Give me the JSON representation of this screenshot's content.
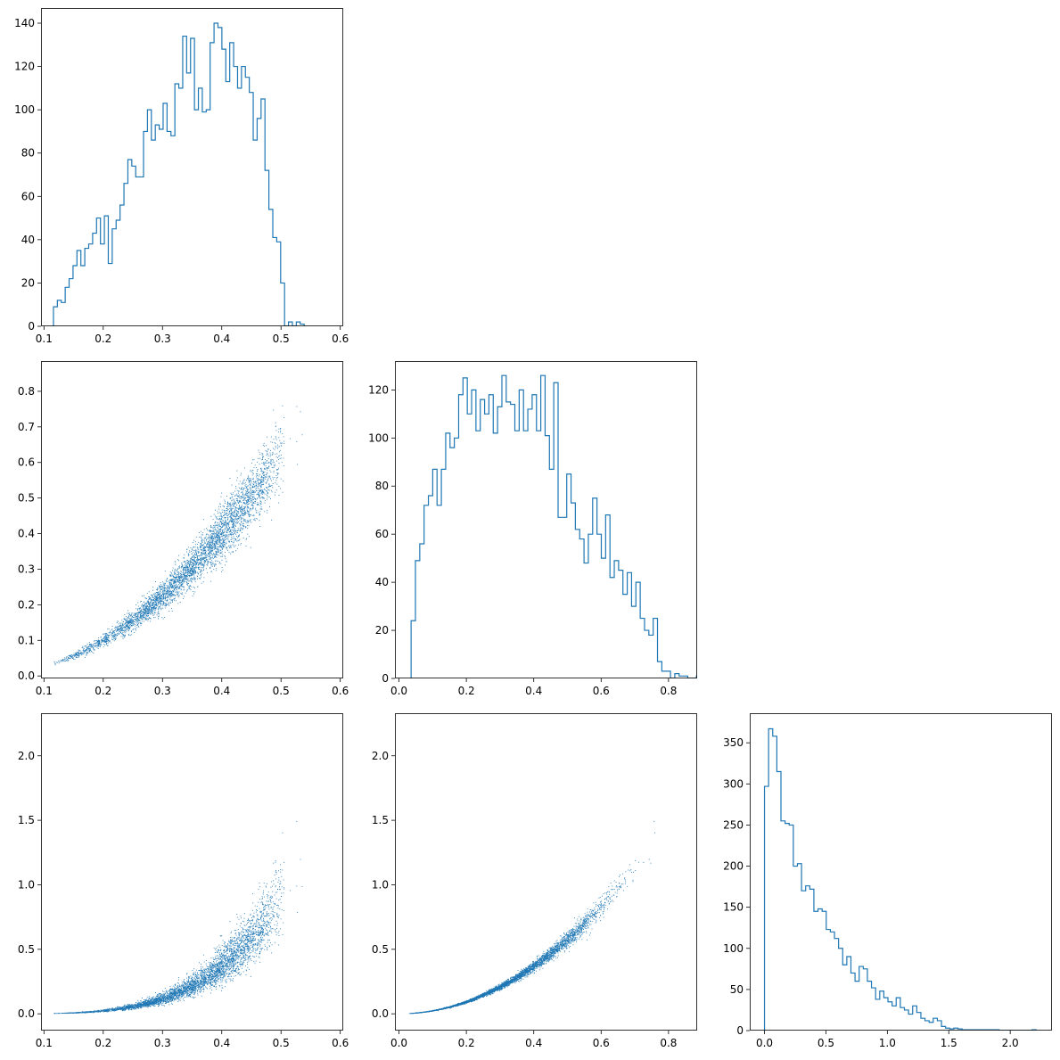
{
  "figure": {
    "type": "corner-plot",
    "series_color": "#1f77b4"
  },
  "chart_data": [
    {
      "id": "hist-param-1",
      "type": "histogram",
      "row": 0,
      "col": 0,
      "xlim": [
        0.095,
        0.605
      ],
      "ylim": [
        0,
        147
      ],
      "xticks": [
        0.1,
        0.2,
        0.3,
        0.4,
        0.5,
        0.6
      ],
      "xtick_labels": [
        "0.1",
        "0.2",
        "0.3",
        "0.4",
        "0.5",
        "0.6"
      ],
      "yticks": [
        0,
        20,
        40,
        60,
        80,
        100,
        120,
        140
      ],
      "ytick_labels": [
        "0",
        "20",
        "40",
        "60",
        "80",
        "100",
        "120",
        "140"
      ],
      "bin_start": 0.116,
      "bin_width": 0.00661,
      "counts": [
        9,
        12,
        11,
        18,
        22,
        28,
        35,
        28,
        36,
        38,
        43,
        50,
        38,
        51,
        29,
        45,
        49,
        56,
        66,
        77,
        74,
        69,
        69,
        90,
        100,
        86,
        93,
        91,
        103,
        90,
        88,
        112,
        110,
        134,
        117,
        133,
        100,
        110,
        99,
        100,
        131,
        140,
        138,
        128,
        113,
        131,
        120,
        110,
        120,
        115,
        108,
        86,
        96,
        105,
        72,
        54,
        41,
        39,
        20,
        0,
        2,
        0,
        2,
        1
      ]
    },
    {
      "id": "scatter-param-1-vs-2",
      "type": "scatter",
      "row": 1,
      "col": 0,
      "xlim": [
        0.095,
        0.605
      ],
      "ylim": [
        -0.007,
        0.885
      ],
      "xticks": [
        0.1,
        0.2,
        0.3,
        0.4,
        0.5,
        0.6
      ],
      "xtick_labels": [
        "0.1",
        "0.2",
        "0.3",
        "0.4",
        "0.5",
        "0.6"
      ],
      "yticks": [
        0,
        0.1,
        0.2,
        0.3,
        0.4,
        0.5,
        0.6,
        0.7,
        0.8
      ],
      "ytick_labels": [
        "0.0",
        "0.1",
        "0.2",
        "0.3",
        "0.4",
        "0.5",
        "0.6",
        "0.7",
        "0.8"
      ],
      "points": 4300,
      "trend": "y ≈ 2.5·x² (band)"
    },
    {
      "id": "hist-param-2",
      "type": "histogram",
      "row": 1,
      "col": 1,
      "xlim": [
        -0.012,
        0.885
      ],
      "ylim": [
        0,
        132
      ],
      "xticks": [
        0,
        0.2,
        0.4,
        0.6,
        0.8
      ],
      "xtick_labels": [
        "0.0",
        "0.2",
        "0.4",
        "0.6",
        "0.8"
      ],
      "yticks": [
        0,
        20,
        40,
        60,
        80,
        100,
        120
      ],
      "ytick_labels": [
        "0",
        "20",
        "40",
        "60",
        "80",
        "100",
        "120"
      ],
      "bin_start": 0.036,
      "bin_width": 0.01283,
      "counts": [
        24,
        49,
        56,
        72,
        76,
        87,
        72,
        87,
        102,
        96,
        100,
        118,
        125,
        110,
        120,
        103,
        116,
        110,
        118,
        102,
        113,
        126,
        115,
        114,
        103,
        120,
        103,
        112,
        118,
        103,
        126,
        101,
        87,
        123,
        67,
        67,
        85,
        73,
        62,
        58,
        48,
        60,
        75,
        60,
        50,
        68,
        42,
        49,
        45,
        35,
        44,
        30,
        40,
        25,
        20,
        18,
        25,
        7,
        3,
        3,
        0,
        2,
        1,
        1,
        0,
        0,
        1
      ]
    },
    {
      "id": "scatter-param-1-vs-3",
      "type": "scatter",
      "row": 2,
      "col": 0,
      "xlim": [
        0.095,
        0.605
      ],
      "ylim": [
        -0.13,
        2.33
      ],
      "xticks": [
        0.1,
        0.2,
        0.3,
        0.4,
        0.5,
        0.6
      ],
      "xtick_labels": [
        "0.1",
        "0.2",
        "0.3",
        "0.4",
        "0.5",
        "0.6"
      ],
      "yticks": [
        0,
        0.5,
        1.0,
        1.5,
        2.0
      ],
      "ytick_labels": [
        "0.0",
        "0.5",
        "1.0",
        "1.5",
        "2.0"
      ],
      "points": 4300,
      "trend": "y ≈ 11.5·x⁵ (band)"
    },
    {
      "id": "scatter-param-2-vs-3",
      "type": "scatter",
      "row": 2,
      "col": 1,
      "xlim": [
        -0.012,
        0.885
      ],
      "ylim": [
        -0.13,
        2.33
      ],
      "xticks": [
        0,
        0.2,
        0.4,
        0.6,
        0.8
      ],
      "xtick_labels": [
        "0.0",
        "0.2",
        "0.4",
        "0.6",
        "0.8"
      ],
      "yticks": [
        0,
        0.5,
        1.0,
        1.5,
        2.0
      ],
      "ytick_labels": [
        "0.0",
        "0.5",
        "1.0",
        "1.5",
        "2.0"
      ],
      "points": 4300,
      "trend": "y ≈ 2.3·x² (narrow band)"
    },
    {
      "id": "hist-param-3",
      "type": "histogram",
      "row": 2,
      "col": 2,
      "xlim": [
        -0.12,
        2.34
      ],
      "ylim": [
        0,
        386
      ],
      "xticks": [
        0,
        0.5,
        1.0,
        1.5,
        2.0
      ],
      "xtick_labels": [
        "0.0",
        "0.5",
        "1.0",
        "1.5",
        "2.0"
      ],
      "yticks": [
        0,
        50,
        100,
        150,
        200,
        250,
        300,
        350
      ],
      "ytick_labels": [
        "0",
        "50",
        "100",
        "150",
        "200",
        "250",
        "300",
        "350"
      ],
      "bin_start": 0.0,
      "bin_width": 0.0335,
      "counts": [
        297,
        367,
        358,
        315,
        255,
        252,
        250,
        200,
        203,
        170,
        176,
        172,
        145,
        148,
        145,
        123,
        120,
        112,
        100,
        80,
        90,
        70,
        60,
        78,
        75,
        60,
        52,
        38,
        48,
        40,
        35,
        30,
        40,
        28,
        25,
        20,
        30,
        22,
        15,
        12,
        10,
        15,
        12,
        5,
        3,
        2,
        3,
        2,
        1,
        1,
        1,
        1,
        1,
        1,
        1,
        1,
        1,
        0,
        0,
        0,
        0,
        0,
        0,
        0,
        0,
        1
      ]
    }
  ]
}
